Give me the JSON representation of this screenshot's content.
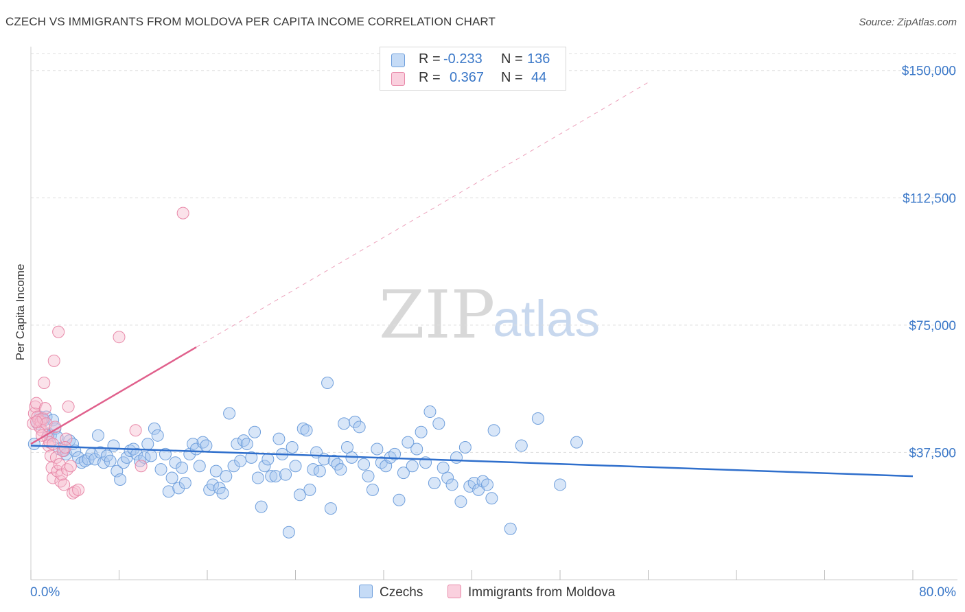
{
  "header": {
    "title": "CZECH VS IMMIGRANTS FROM MOLDOVA PER CAPITA INCOME CORRELATION CHART",
    "source": "Source: ZipAtlas.com"
  },
  "watermark": {
    "zip": "ZIP",
    "atlas": "atlas"
  },
  "legend": {
    "rows": [
      {
        "r_label": "R =",
        "r_value": "-0.233",
        "n_label": "N =",
        "n_value": "136",
        "color": "#a9c8f0"
      },
      {
        "r_label": "R =",
        "r_value": "0.367",
        "n_label": "N =",
        "n_value": "44",
        "color": "#f4b8cb"
      }
    ]
  },
  "bottom_legend": {
    "czechs": "Czechs",
    "moldova": "Immigrants from Moldova"
  },
  "colors": {
    "czech_fill": "#a9c8f0",
    "czech_stroke": "#6f9fdc",
    "czech_line": "#2f6fcc",
    "moldova_fill": "#f6bfd0",
    "moldova_stroke": "#e888a8",
    "moldova_line": "#e0608c",
    "tick_text": "#3b78c8",
    "grid": "#dddddd"
  },
  "chart_data": {
    "type": "scatter",
    "title": "CZECH VS IMMIGRANTS FROM MOLDOVA PER CAPITA INCOME CORRELATION CHART",
    "xlabel": "",
    "ylabel": "Per Capita Income",
    "xlim": [
      0,
      80
    ],
    "ylim": [
      0,
      155000
    ],
    "x_tick_labels": [
      "0.0%",
      "80.0%"
    ],
    "y_ticks": [
      37500,
      75000,
      112500,
      150000
    ],
    "y_tick_labels": [
      "$37,500",
      "$75,000",
      "$112,500",
      "$150,000"
    ],
    "grid": true,
    "series": [
      {
        "name": "Czechs",
        "r": -0.233,
        "n": 136,
        "trend": {
          "x": [
            0,
            80
          ],
          "y": [
            39500,
            30500
          ]
        },
        "points": [
          [
            0.3,
            40000
          ],
          [
            0.6,
            46000
          ],
          [
            0.8,
            48000
          ],
          [
            1.0,
            47500
          ],
          [
            1.2,
            47000
          ],
          [
            1.4,
            48000
          ],
          [
            1.6,
            43000
          ],
          [
            1.8,
            42500
          ],
          [
            2.0,
            47000
          ],
          [
            2.2,
            44500
          ],
          [
            2.4,
            42000
          ],
          [
            2.6,
            38500
          ],
          [
            3.0,
            38000
          ],
          [
            3.2,
            37000
          ],
          [
            3.5,
            41000
          ],
          [
            3.8,
            40000
          ],
          [
            4.0,
            38000
          ],
          [
            4.3,
            36000
          ],
          [
            4.6,
            34500
          ],
          [
            4.9,
            35000
          ],
          [
            5.2,
            35500
          ],
          [
            5.5,
            37000
          ],
          [
            5.8,
            35500
          ],
          [
            6.1,
            42500
          ],
          [
            6.3,
            37500
          ],
          [
            6.6,
            34500
          ],
          [
            6.9,
            36500
          ],
          [
            7.2,
            35000
          ],
          [
            7.5,
            39500
          ],
          [
            7.8,
            32000
          ],
          [
            8.1,
            29500
          ],
          [
            8.4,
            34500
          ],
          [
            8.7,
            36000
          ],
          [
            9.0,
            38000
          ],
          [
            9.3,
            38500
          ],
          [
            9.6,
            37000
          ],
          [
            9.9,
            35000
          ],
          [
            10.3,
            36000
          ],
          [
            10.6,
            40000
          ],
          [
            10.9,
            36500
          ],
          [
            11.2,
            44500
          ],
          [
            11.5,
            42500
          ],
          [
            11.8,
            32500
          ],
          [
            12.2,
            37000
          ],
          [
            12.5,
            26000
          ],
          [
            12.8,
            30000
          ],
          [
            13.1,
            34500
          ],
          [
            13.4,
            27000
          ],
          [
            13.7,
            33000
          ],
          [
            14.0,
            28500
          ],
          [
            14.4,
            37000
          ],
          [
            14.7,
            40000
          ],
          [
            15.0,
            38500
          ],
          [
            15.3,
            33500
          ],
          [
            15.6,
            40500
          ],
          [
            15.9,
            39500
          ],
          [
            16.2,
            26500
          ],
          [
            16.5,
            28000
          ],
          [
            16.8,
            32000
          ],
          [
            17.1,
            27000
          ],
          [
            17.4,
            25500
          ],
          [
            17.7,
            30500
          ],
          [
            18.0,
            49000
          ],
          [
            18.4,
            33500
          ],
          [
            18.7,
            40000
          ],
          [
            19.0,
            35000
          ],
          [
            19.3,
            41000
          ],
          [
            19.6,
            40000
          ],
          [
            20.0,
            36000
          ],
          [
            20.3,
            43500
          ],
          [
            20.6,
            30000
          ],
          [
            20.9,
            21500
          ],
          [
            21.2,
            33500
          ],
          [
            21.5,
            35500
          ],
          [
            21.8,
            30500
          ],
          [
            22.2,
            30500
          ],
          [
            22.5,
            41500
          ],
          [
            22.8,
            37000
          ],
          [
            23.1,
            31000
          ],
          [
            23.4,
            14000
          ],
          [
            23.7,
            39000
          ],
          [
            24.0,
            33500
          ],
          [
            24.4,
            25000
          ],
          [
            24.7,
            44500
          ],
          [
            25.0,
            44000
          ],
          [
            25.3,
            26500
          ],
          [
            25.6,
            32500
          ],
          [
            25.9,
            37500
          ],
          [
            26.2,
            32000
          ],
          [
            26.6,
            35500
          ],
          [
            26.9,
            58000
          ],
          [
            27.2,
            21000
          ],
          [
            27.5,
            35000
          ],
          [
            27.8,
            34000
          ],
          [
            28.1,
            32500
          ],
          [
            28.4,
            46000
          ],
          [
            28.7,
            39000
          ],
          [
            29.1,
            36000
          ],
          [
            29.4,
            46500
          ],
          [
            29.8,
            45000
          ],
          [
            30.2,
            34000
          ],
          [
            30.6,
            30500
          ],
          [
            31.0,
            26500
          ],
          [
            31.4,
            38500
          ],
          [
            31.8,
            34500
          ],
          [
            32.2,
            33500
          ],
          [
            32.6,
            36000
          ],
          [
            33.0,
            37000
          ],
          [
            33.4,
            23500
          ],
          [
            33.8,
            31500
          ],
          [
            34.2,
            40500
          ],
          [
            34.6,
            33500
          ],
          [
            35.0,
            38500
          ],
          [
            35.4,
            43500
          ],
          [
            35.8,
            34500
          ],
          [
            36.2,
            49500
          ],
          [
            36.6,
            28500
          ],
          [
            37.0,
            46000
          ],
          [
            37.4,
            33000
          ],
          [
            37.8,
            30000
          ],
          [
            38.2,
            28000
          ],
          [
            38.6,
            36000
          ],
          [
            39.0,
            23000
          ],
          [
            39.4,
            39000
          ],
          [
            39.8,
            27500
          ],
          [
            40.2,
            28500
          ],
          [
            40.6,
            26500
          ],
          [
            41.0,
            29000
          ],
          [
            41.4,
            28000
          ],
          [
            41.8,
            24000
          ],
          [
            43.5,
            15000
          ],
          [
            46.0,
            47500
          ],
          [
            48.0,
            28000
          ],
          [
            44.5,
            39500
          ],
          [
            42.0,
            44000
          ],
          [
            49.5,
            40500
          ]
        ]
      },
      {
        "name": "Immigrants from Moldova",
        "r": 0.367,
        "n": 44,
        "trend": {
          "x": [
            0,
            15
          ],
          "y": [
            40000,
            68500
          ]
        },
        "trend_extension": {
          "x": [
            15,
            56
          ],
          "y": [
            68500,
            146500
          ]
        },
        "points": [
          [
            0.2,
            46000
          ],
          [
            0.3,
            49000
          ],
          [
            0.4,
            51000
          ],
          [
            0.5,
            52000
          ],
          [
            0.6,
            48000
          ],
          [
            0.7,
            47000
          ],
          [
            0.8,
            45000
          ],
          [
            0.9,
            46500
          ],
          [
            1.0,
            44000
          ],
          [
            1.1,
            47500
          ],
          [
            1.2,
            58000
          ],
          [
            1.3,
            50500
          ],
          [
            1.4,
            46000
          ],
          [
            1.5,
            42000
          ],
          [
            1.6,
            39500
          ],
          [
            1.7,
            40500
          ],
          [
            1.8,
            36500
          ],
          [
            1.9,
            33000
          ],
          [
            2.0,
            30000
          ],
          [
            2.1,
            64500
          ],
          [
            2.2,
            45000
          ],
          [
            2.3,
            36000
          ],
          [
            2.4,
            32000
          ],
          [
            2.5,
            73000
          ],
          [
            2.6,
            34000
          ],
          [
            2.7,
            29000
          ],
          [
            2.8,
            31000
          ],
          [
            2.9,
            38000
          ],
          [
            3.0,
            28000
          ],
          [
            3.2,
            41500
          ],
          [
            3.3,
            32500
          ],
          [
            3.4,
            51000
          ],
          [
            3.6,
            33500
          ],
          [
            3.8,
            25500
          ],
          [
            4.0,
            26000
          ],
          [
            3.1,
            39000
          ],
          [
            2.0,
            40000
          ],
          [
            1.0,
            42500
          ],
          [
            0.5,
            46500
          ],
          [
            4.3,
            26500
          ],
          [
            8.0,
            71500
          ],
          [
            9.5,
            44000
          ],
          [
            10.0,
            33500
          ],
          [
            13.8,
            108000
          ]
        ]
      }
    ]
  }
}
